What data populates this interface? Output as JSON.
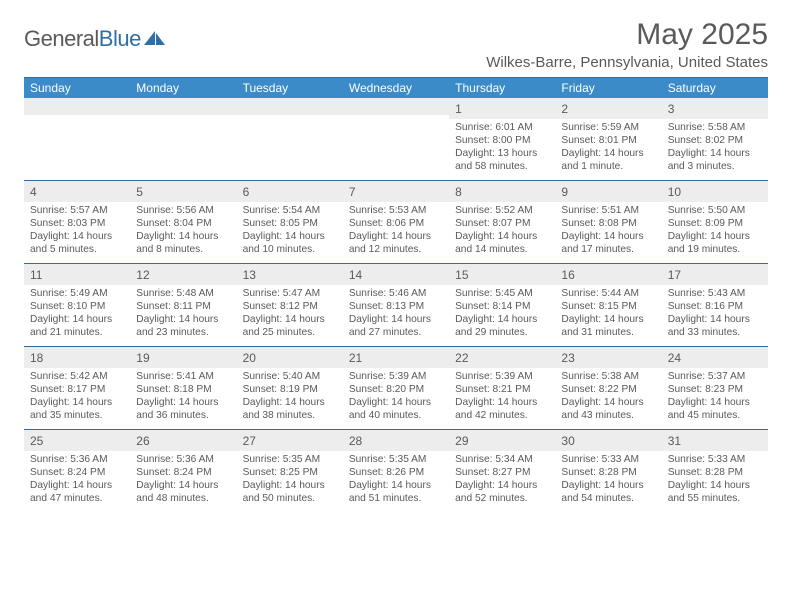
{
  "logo": {
    "text_a": "General",
    "text_b": "Blue"
  },
  "title": "May 2025",
  "location": "Wilkes-Barre, Pennsylvania, United States",
  "colors": {
    "header_bg": "#3b8bc9",
    "border": "#2f6fa7",
    "daynum_bg": "#ededed",
    "text": "#5a5a5a",
    "white": "#ffffff"
  },
  "day_names": [
    "Sunday",
    "Monday",
    "Tuesday",
    "Wednesday",
    "Thursday",
    "Friday",
    "Saturday"
  ],
  "weeks": [
    [
      null,
      null,
      null,
      null,
      {
        "n": "1",
        "sr": "6:01 AM",
        "ss": "8:00 PM",
        "dl": "13 hours and 58 minutes."
      },
      {
        "n": "2",
        "sr": "5:59 AM",
        "ss": "8:01 PM",
        "dl": "14 hours and 1 minute."
      },
      {
        "n": "3",
        "sr": "5:58 AM",
        "ss": "8:02 PM",
        "dl": "14 hours and 3 minutes."
      }
    ],
    [
      {
        "n": "4",
        "sr": "5:57 AM",
        "ss": "8:03 PM",
        "dl": "14 hours and 5 minutes."
      },
      {
        "n": "5",
        "sr": "5:56 AM",
        "ss": "8:04 PM",
        "dl": "14 hours and 8 minutes."
      },
      {
        "n": "6",
        "sr": "5:54 AM",
        "ss": "8:05 PM",
        "dl": "14 hours and 10 minutes."
      },
      {
        "n": "7",
        "sr": "5:53 AM",
        "ss": "8:06 PM",
        "dl": "14 hours and 12 minutes."
      },
      {
        "n": "8",
        "sr": "5:52 AM",
        "ss": "8:07 PM",
        "dl": "14 hours and 14 minutes."
      },
      {
        "n": "9",
        "sr": "5:51 AM",
        "ss": "8:08 PM",
        "dl": "14 hours and 17 minutes."
      },
      {
        "n": "10",
        "sr": "5:50 AM",
        "ss": "8:09 PM",
        "dl": "14 hours and 19 minutes."
      }
    ],
    [
      {
        "n": "11",
        "sr": "5:49 AM",
        "ss": "8:10 PM",
        "dl": "14 hours and 21 minutes."
      },
      {
        "n": "12",
        "sr": "5:48 AM",
        "ss": "8:11 PM",
        "dl": "14 hours and 23 minutes."
      },
      {
        "n": "13",
        "sr": "5:47 AM",
        "ss": "8:12 PM",
        "dl": "14 hours and 25 minutes."
      },
      {
        "n": "14",
        "sr": "5:46 AM",
        "ss": "8:13 PM",
        "dl": "14 hours and 27 minutes."
      },
      {
        "n": "15",
        "sr": "5:45 AM",
        "ss": "8:14 PM",
        "dl": "14 hours and 29 minutes."
      },
      {
        "n": "16",
        "sr": "5:44 AM",
        "ss": "8:15 PM",
        "dl": "14 hours and 31 minutes."
      },
      {
        "n": "17",
        "sr": "5:43 AM",
        "ss": "8:16 PM",
        "dl": "14 hours and 33 minutes."
      }
    ],
    [
      {
        "n": "18",
        "sr": "5:42 AM",
        "ss": "8:17 PM",
        "dl": "14 hours and 35 minutes."
      },
      {
        "n": "19",
        "sr": "5:41 AM",
        "ss": "8:18 PM",
        "dl": "14 hours and 36 minutes."
      },
      {
        "n": "20",
        "sr": "5:40 AM",
        "ss": "8:19 PM",
        "dl": "14 hours and 38 minutes."
      },
      {
        "n": "21",
        "sr": "5:39 AM",
        "ss": "8:20 PM",
        "dl": "14 hours and 40 minutes."
      },
      {
        "n": "22",
        "sr": "5:39 AM",
        "ss": "8:21 PM",
        "dl": "14 hours and 42 minutes."
      },
      {
        "n": "23",
        "sr": "5:38 AM",
        "ss": "8:22 PM",
        "dl": "14 hours and 43 minutes."
      },
      {
        "n": "24",
        "sr": "5:37 AM",
        "ss": "8:23 PM",
        "dl": "14 hours and 45 minutes."
      }
    ],
    [
      {
        "n": "25",
        "sr": "5:36 AM",
        "ss": "8:24 PM",
        "dl": "14 hours and 47 minutes."
      },
      {
        "n": "26",
        "sr": "5:36 AM",
        "ss": "8:24 PM",
        "dl": "14 hours and 48 minutes."
      },
      {
        "n": "27",
        "sr": "5:35 AM",
        "ss": "8:25 PM",
        "dl": "14 hours and 50 minutes."
      },
      {
        "n": "28",
        "sr": "5:35 AM",
        "ss": "8:26 PM",
        "dl": "14 hours and 51 minutes."
      },
      {
        "n": "29",
        "sr": "5:34 AM",
        "ss": "8:27 PM",
        "dl": "14 hours and 52 minutes."
      },
      {
        "n": "30",
        "sr": "5:33 AM",
        "ss": "8:28 PM",
        "dl": "14 hours and 54 minutes."
      },
      {
        "n": "31",
        "sr": "5:33 AM",
        "ss": "8:28 PM",
        "dl": "14 hours and 55 minutes."
      }
    ]
  ],
  "labels": {
    "sunrise": "Sunrise:",
    "sunset": "Sunset:",
    "daylight": "Daylight:"
  }
}
